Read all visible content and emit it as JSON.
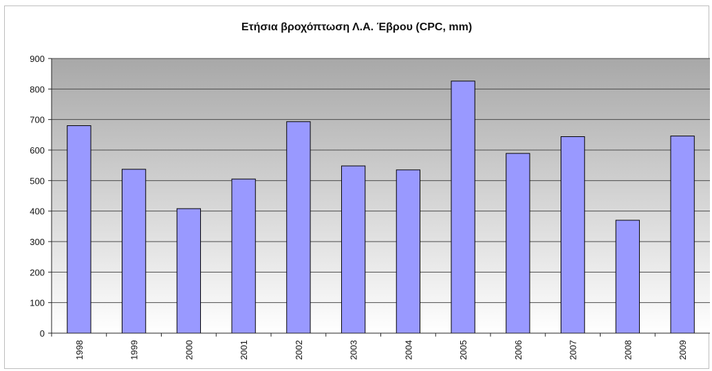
{
  "chart_data": {
    "type": "bar",
    "title": "Ετήσια βροχόπτωση Λ.Α. Έβρου (CPC, mm)",
    "categories": [
      "1998",
      "1999",
      "2000",
      "2001",
      "2002",
      "2003",
      "2004",
      "2005",
      "2006",
      "2007",
      "2008",
      "2009"
    ],
    "series": [
      {
        "values": [
          680,
          537,
          408,
          505,
          693,
          548,
          535,
          826,
          589,
          644,
          370,
          646
        ],
        "color": "#9999ff"
      }
    ],
    "xlabel": "",
    "ylabel": "",
    "ylim": [
      0,
      900
    ],
    "yticks": [
      0,
      100,
      200,
      300,
      400,
      500,
      600,
      700,
      800,
      900
    ],
    "grid": true,
    "legend": "none",
    "plot_background_top": "#a8a8a8",
    "plot_background_bottom": "#ffffff",
    "bar_border_color": "#000000"
  }
}
